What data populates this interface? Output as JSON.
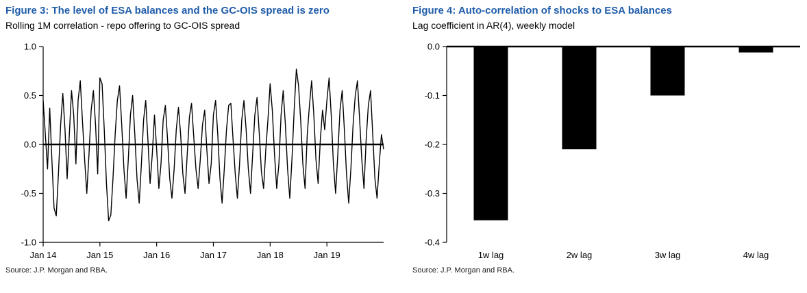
{
  "figures": [
    {
      "title": "Figure 3: The level of ESA balances and the GC-OIS spread is zero",
      "subtitle": "Rolling 1M correlation - repo offering to GC-OIS spread",
      "source": "Source: J.P. Morgan and RBA."
    },
    {
      "title": "Figure 4: Auto-correlation of shocks to ESA balances",
      "subtitle": "Lag coefficient in AR(4), weekly model",
      "source": "Source: J.P. Morgan and RBA."
    }
  ],
  "colors": {
    "title_blue": "#1f5ca9",
    "line_black": "#000000",
    "bar_black": "#000000"
  },
  "chart_data": [
    {
      "type": "line",
      "title": "Rolling 1M correlation - repo offering to GC-OIS spread",
      "xlabel": "",
      "ylabel": "",
      "ylim": [
        -1.0,
        1.0
      ],
      "y_ticks": [
        "1.0",
        "0.5",
        "0.0",
        "-0.5",
        "-1.0"
      ],
      "x_tick_labels": [
        "Jan 14",
        "Jan 15",
        "Jan 16",
        "Jan 17",
        "Jan 18",
        "Jan 19"
      ],
      "x_tick_indices": [
        0,
        26,
        52,
        78,
        104,
        130
      ],
      "zero_line": true,
      "grid": false,
      "values": [
        0.45,
        0.1,
        -0.25,
        0.37,
        -0.15,
        -0.65,
        -0.73,
        -0.3,
        0.2,
        0.52,
        0.15,
        -0.35,
        0.1,
        0.55,
        0.3,
        -0.2,
        0.45,
        0.65,
        0.25,
        -0.15,
        -0.5,
        -0.1,
        0.35,
        0.55,
        0.2,
        -0.3,
        0.68,
        0.62,
        0.15,
        -0.4,
        -0.78,
        -0.72,
        -0.35,
        0.1,
        0.45,
        0.6,
        0.2,
        -0.25,
        -0.55,
        -0.15,
        0.3,
        0.5,
        0.1,
        -0.35,
        -0.6,
        -0.2,
        0.25,
        0.45,
        0.05,
        -0.4,
        -0.1,
        0.3,
        -0.05,
        -0.45,
        -0.2,
        0.25,
        0.4,
        0.05,
        -0.35,
        -0.55,
        -0.25,
        0.15,
        0.38,
        0.1,
        -0.3,
        -0.5,
        -0.1,
        0.28,
        0.42,
        0.08,
        -0.25,
        -0.45,
        -0.15,
        0.2,
        0.35,
        -0.05,
        -0.4,
        -0.2,
        0.3,
        0.45,
        0.1,
        -0.35,
        -0.6,
        -0.25,
        0.15,
        0.4,
        0.42,
        0.05,
        -0.3,
        -0.55,
        -0.2,
        0.25,
        0.45,
        0.15,
        -0.25,
        -0.5,
        -0.1,
        0.3,
        0.48,
        0.12,
        -0.28,
        -0.45,
        -0.05,
        0.25,
        0.62,
        0.35,
        -0.1,
        -0.45,
        -0.2,
        0.3,
        0.55,
        0.2,
        -0.25,
        -0.55,
        -0.15,
        0.35,
        0.77,
        0.6,
        0.25,
        -0.2,
        -0.45,
        0.1,
        0.4,
        0.65,
        0.3,
        -0.15,
        -0.4,
        0.05,
        0.35,
        0.15,
        0.45,
        0.68,
        0.3,
        -0.2,
        -0.5,
        -0.1,
        0.35,
        0.55,
        0.15,
        -0.3,
        -0.6,
        -0.25,
        0.2,
        0.5,
        0.65,
        0.25,
        -0.15,
        -0.45,
        0.05,
        0.4,
        0.55,
        0.1,
        -0.35,
        -0.55,
        -0.2,
        0.1,
        -0.05
      ]
    },
    {
      "type": "bar",
      "title": "Lag coefficient in AR(4), weekly model",
      "categories": [
        "1w lag",
        "2w lag",
        "3w lag",
        "4w lag"
      ],
      "values": [
        -0.355,
        -0.21,
        -0.1,
        -0.012
      ],
      "xlabel": "",
      "ylabel": "",
      "ylim": [
        -0.4,
        0.0
      ],
      "y_ticks": [
        "0.0",
        "-0.1",
        "-0.2",
        "-0.3",
        "-0.4"
      ],
      "grid": false,
      "legend": false
    }
  ]
}
